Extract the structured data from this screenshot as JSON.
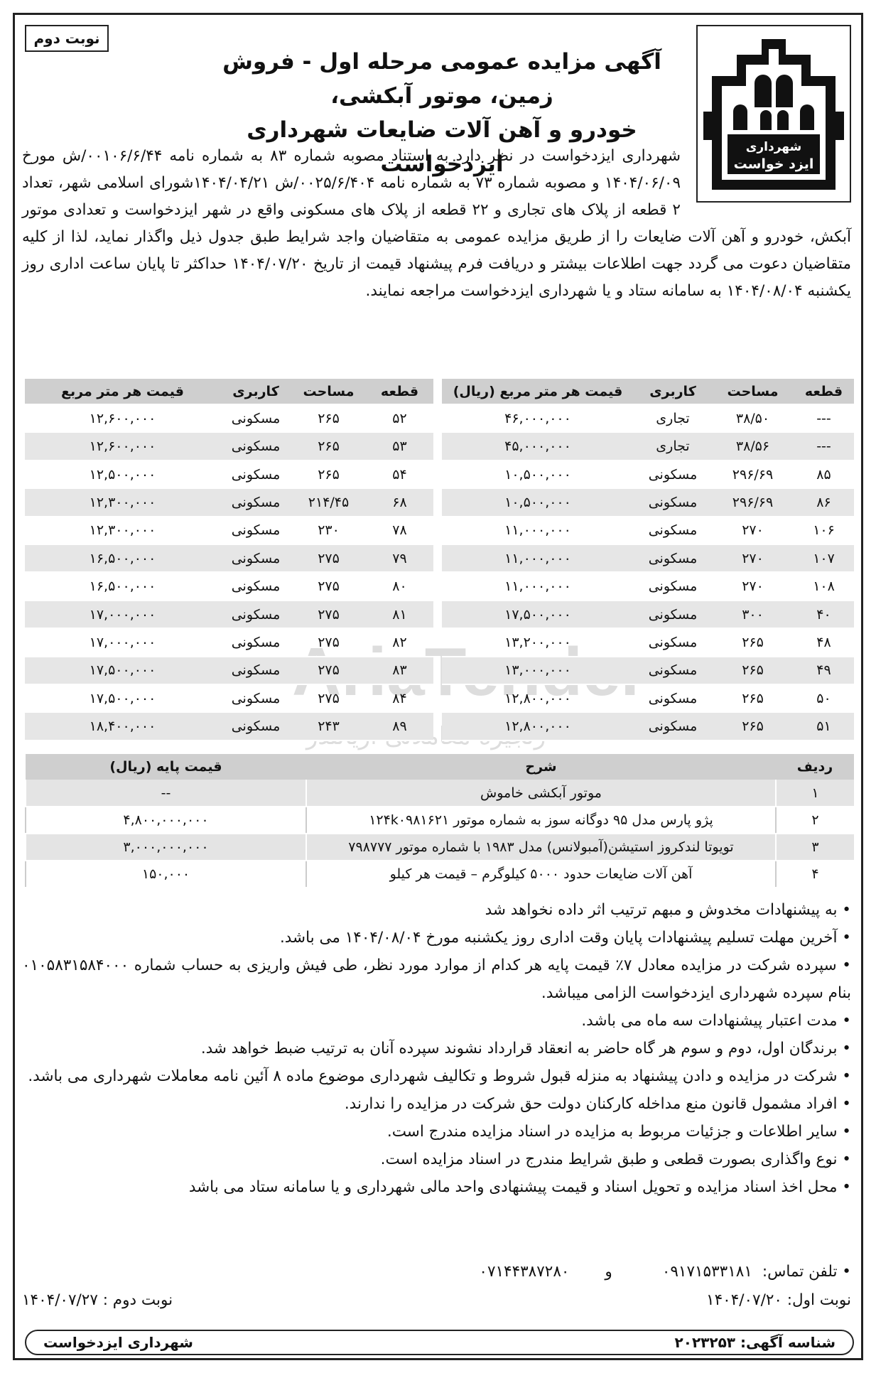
{
  "edition_tag": "نوبت دوم",
  "logo": {
    "text_line1": "شهرداری",
    "text_line2": "ایزد خواست"
  },
  "headline": {
    "line1": "آگهی مزایده عمومی مرحله اول - فروش زمین، موتور آبکشی،",
    "line2": "خودرو و آهن آلات ضایعات شهرداری ایزدخواست"
  },
  "intro": "شهرداری ایزدخواست در نظر دارد به استناد مصوبه شماره ۸۳ به شماره نامه ۰۰۱۰۶/۶/۴۴/ش مورخ ۱۴۰۴/۰۶/۰۹ و مصوبه شماره ۷۳ به شماره نامه ۰۰۲۵/۶/۴۰۴/ش ۱۴۰۴/۰۴/۲۱شورای اسلامی شهر، تعداد ۲ قطعه از پلاک های تجاری و ۲۲ قطعه از پلاک های مسکونی واقع در شهر ایزدخواست و تعدادی موتور آبکش، خودرو و آهن آلات ضایعات را از طریق مزایده عمومی به متقاضیان واجد شرایط طبق جدول ذیل واگذار نماید، لذا از کلیه متقاضیان دعوت می گردد جهت اطلاعات بیشتر و دریافت فرم پیشنهاد قیمت از تاریخ ۱۴۰۴/۰۷/۲۰ حداکثر تا پایان ساعت اداری روز یکشنبه ۱۴۰۴/۰۸/۰۴ به سامانه ستاد و یا شهرداری ایزدخواست مراجعه نمایند.",
  "plots_right": {
    "headers": [
      "قطعه",
      "مساحت",
      "کاربری",
      "قیمت هر متر مربع (ریال)"
    ],
    "rows": [
      [
        "---",
        "۳۸/۵۰",
        "تجاری",
        "۴۶,۰۰۰,۰۰۰"
      ],
      [
        "---",
        "۳۸/۵۶",
        "تجاری",
        "۴۵,۰۰۰,۰۰۰"
      ],
      [
        "۸۵",
        "۲۹۶/۶۹",
        "مسکونی",
        "۱۰,۵۰۰,۰۰۰"
      ],
      [
        "۸۶",
        "۲۹۶/۶۹",
        "مسکونی",
        "۱۰,۵۰۰,۰۰۰"
      ],
      [
        "۱۰۶",
        "۲۷۰",
        "مسکونی",
        "۱۱,۰۰۰,۰۰۰"
      ],
      [
        "۱۰۷",
        "۲۷۰",
        "مسکونی",
        "۱۱,۰۰۰,۰۰۰"
      ],
      [
        "۱۰۸",
        "۲۷۰",
        "مسکونی",
        "۱۱,۰۰۰,۰۰۰"
      ],
      [
        "۴۰",
        "۳۰۰",
        "مسکونی",
        "۱۷,۵۰۰,۰۰۰"
      ],
      [
        "۴۸",
        "۲۶۵",
        "مسکونی",
        "۱۳,۲۰۰,۰۰۰"
      ],
      [
        "۴۹",
        "۲۶۵",
        "مسکونی",
        "۱۳,۰۰۰,۰۰۰"
      ],
      [
        "۵۰",
        "۲۶۵",
        "مسکونی",
        "۱۲,۸۰۰,۰۰۰"
      ],
      [
        "۵۱",
        "۲۶۵",
        "مسکونی",
        "۱۲,۸۰۰,۰۰۰"
      ]
    ]
  },
  "plots_left": {
    "headers": [
      "قطعه",
      "مساحت",
      "کاربری",
      "قیمت هر متر مربع"
    ],
    "rows": [
      [
        "۵۲",
        "۲۶۵",
        "مسکونی",
        "۱۲,۶۰۰,۰۰۰"
      ],
      [
        "۵۳",
        "۲۶۵",
        "مسکونی",
        "۱۲,۶۰۰,۰۰۰"
      ],
      [
        "۵۴",
        "۲۶۵",
        "مسکونی",
        "۱۲,۵۰۰,۰۰۰"
      ],
      [
        "۶۸",
        "۲۱۴/۴۵",
        "مسکونی",
        "۱۲,۳۰۰,۰۰۰"
      ],
      [
        "۷۸",
        "۲۳۰",
        "مسکونی",
        "۱۲,۳۰۰,۰۰۰"
      ],
      [
        "۷۹",
        "۲۷۵",
        "مسکونی",
        "۱۶,۵۰۰,۰۰۰"
      ],
      [
        "۸۰",
        "۲۷۵",
        "مسکونی",
        "۱۶,۵۰۰,۰۰۰"
      ],
      [
        "۸۱",
        "۲۷۵",
        "مسکونی",
        "۱۷,۰۰۰,۰۰۰"
      ],
      [
        "۸۲",
        "۲۷۵",
        "مسکونی",
        "۱۷,۰۰۰,۰۰۰"
      ],
      [
        "۸۳",
        "۲۷۵",
        "مسکونی",
        "۱۷,۵۰۰,۰۰۰"
      ],
      [
        "۸۴",
        "۲۷۵",
        "مسکونی",
        "۱۷,۵۰۰,۰۰۰"
      ],
      [
        "۸۹",
        "۲۴۳",
        "مسکونی",
        "۱۸,۴۰۰,۰۰۰"
      ]
    ]
  },
  "watermark": {
    "brand": "AriaTender",
    "sub": "زنجیره معاملاتی آریاتندر"
  },
  "items": {
    "headers": [
      "ردیف",
      "شرح",
      "قیمت پایه (ریال)"
    ],
    "rows": [
      [
        "۱",
        "موتور آبکشی خاموش",
        "--"
      ],
      [
        "۲",
        "پژو پارس مدل ۹۵ دوگانه سوز به شماره موتور ۱۲۴k۰۹۸۱۶۲۱",
        "۴,۸۰۰,۰۰۰,۰۰۰"
      ],
      [
        "۳",
        "تویوتا لندکروز استیشن(آمبولانس) مدل ۱۹۸۳ با شماره موتور ۷۹۸۷۷۷",
        "۳,۰۰۰,۰۰۰,۰۰۰"
      ],
      [
        "۴",
        "آهن آلات ضایعات حدود ۵۰۰۰ کیلوگرم – قیمت هر کیلو",
        "۱۵۰,۰۰۰"
      ]
    ]
  },
  "conditions": [
    "به پیشنهادات مخدوش و مبهم ترتیب اثر داده نخواهد شد",
    "آخرین مهلت تسلیم پیشنهادات پایان وقت اداری روز یکشنبه مورخ ۱۴۰۴/۰۸/۰۴ می باشد.",
    "سپرده شرکت در مزایده معادل ۷٪ قیمت پایه هر کدام از موارد مورد نظر، طی فیش واریزی به حساب شماره ۰۱۰۵۸۳۱۵۸۴۰۰۰ بنام سپرده شهرداری ایزدخواست الزامی میباشد.",
    "مدت اعتبار پیشنهادات سه ماه می باشد.",
    "برندگان اول، دوم و سوم هر گاه حاضر به انعقاد قرارداد نشوند سپرده آنان به ترتیب ضبط خواهد شد.",
    "شرکت در مزایده و دادن پیشنهاد به منزله قبول شروط و تکالیف شهرداری موضوع ماده ۸ آئین نامه معاملات شهرداری می باشد.",
    "افراد مشمول قانون منع مداخله کارکنان دولت حق شرکت در مزایده را ندارند.",
    "سایر اطلاعات و جزئیات مربوط به مزایده در اسناد مزایده مندرج است.",
    "نوع واگذاری بصورت قطعی و طبق شرایط مندرج در اسناد مزایده است.",
    "محل اخذ اسناد مزایده و تحویل اسناد و قیمت پیشنهادی واحد مالی شهرداری و یا سامانه ستاد می باشد"
  ],
  "phone": {
    "label": "• تلفن تماس:",
    "mobile": "۰۹۱۷۱۵۳۳۱۸۱",
    "and": "و",
    "landline": "۰۷۱۴۴۳۸۷۲۸۰"
  },
  "editions": {
    "first": "نوبت اول: ۱۴۰۴/۰۷/۲۰",
    "second": "نوبت دوم : ۱۴۰۴/۰۷/۲۷"
  },
  "footer": {
    "ad_id": "شناسه آگهی: ۲۰۲۳۲۵۳",
    "publisher": "شهرداری ایزدخواست"
  }
}
